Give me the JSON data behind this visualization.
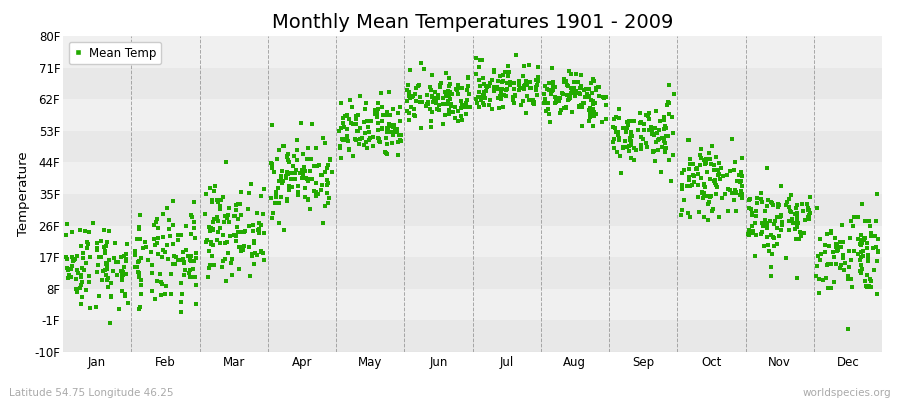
{
  "title": "Monthly Mean Temperatures 1901 - 2009",
  "ylabel": "Temperature",
  "yticks": [
    -10,
    -1,
    8,
    17,
    26,
    35,
    44,
    53,
    62,
    71,
    80
  ],
  "ytick_labels": [
    "-10F",
    "-1F",
    "8F",
    "17F",
    "26F",
    "35F",
    "44F",
    "53F",
    "62F",
    "71F",
    "80F"
  ],
  "ylim": [
    -10,
    80
  ],
  "months": [
    "Jan",
    "Feb",
    "Mar",
    "Apr",
    "May",
    "Jun",
    "Jul",
    "Aug",
    "Sep",
    "Oct",
    "Nov",
    "Dec"
  ],
  "dot_color": "#22aa00",
  "background_color": "#ffffff",
  "band_colors": [
    "#e8e8e8",
    "#f0f0f0"
  ],
  "grid_color": "#888888",
  "title_fontsize": 14,
  "footer_left": "Latitude 54.75 Longitude 46.25",
  "footer_right": "worldspecies.org",
  "n_years": 109,
  "mean_temps_C": [
    -9.5,
    -9.0,
    -4.0,
    4.5,
    11.5,
    16.5,
    18.5,
    17.0,
    11.0,
    3.5,
    -2.5,
    -7.5
  ],
  "std_temps_C": [
    3.5,
    4.0,
    3.5,
    3.2,
    2.5,
    2.0,
    2.0,
    2.0,
    2.5,
    2.5,
    3.0,
    3.5
  ]
}
